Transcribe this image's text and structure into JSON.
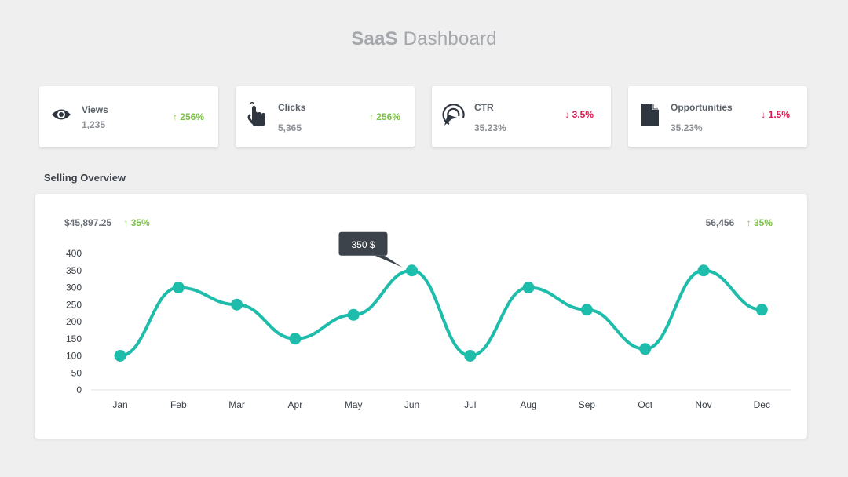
{
  "header": {
    "title_bold": "SaaS",
    "title_rest": "Dashboard"
  },
  "stats": [
    {
      "label": "Views",
      "value": "1,235",
      "change": "256%",
      "direction": "up",
      "icon": "eye-icon"
    },
    {
      "label": "Clicks",
      "value": "5,365",
      "change": "256%",
      "direction": "up",
      "icon": "pointer-hand-icon"
    },
    {
      "label": "CTR",
      "value": "35.23%",
      "change": "3.5%",
      "direction": "down",
      "icon": "target-cursor-icon"
    },
    {
      "label": "Opportunities",
      "value": "35.23%",
      "change": "1.5%",
      "direction": "down",
      "icon": "document-icon"
    }
  ],
  "arrows": {
    "up": "↑",
    "down": "↓"
  },
  "colors": {
    "accent": "#1ebcaa",
    "up": "#7dc24b",
    "down": "#d81b4f",
    "tooltip_bg": "#3c434b"
  },
  "overview": {
    "title": "Selling Overview",
    "left_summary": {
      "value": "$45,897.25",
      "change": "35%"
    },
    "right_summary": {
      "value": "56,456",
      "change": "35%"
    }
  },
  "chart_data": {
    "type": "line",
    "categories": [
      "Jan",
      "Feb",
      "Mar",
      "Apr",
      "May",
      "Jun",
      "Jul",
      "Aug",
      "Sep",
      "Oct",
      "Nov",
      "Dec"
    ],
    "values": [
      100,
      300,
      250,
      150,
      220,
      350,
      100,
      300,
      235,
      120,
      350,
      235
    ],
    "ylim": [
      0,
      400
    ],
    "yticks": [
      0,
      50,
      100,
      150,
      200,
      250,
      300,
      350,
      400
    ],
    "smooth": true,
    "markers": true,
    "tooltip": {
      "index": 5,
      "text": "350 $"
    }
  }
}
